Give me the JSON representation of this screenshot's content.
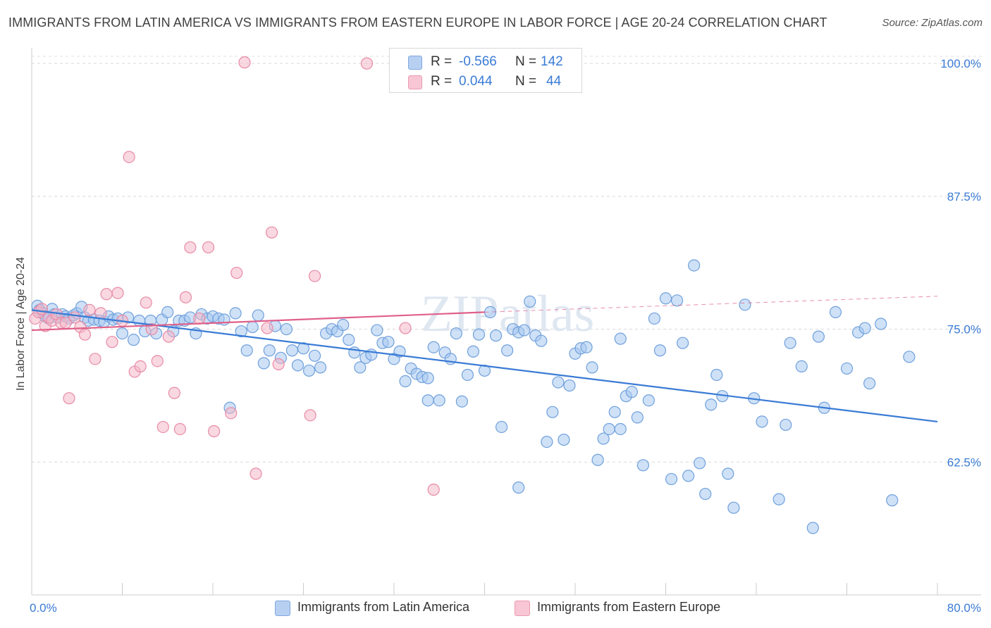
{
  "title": "IMMIGRANTS FROM LATIN AMERICA VS IMMIGRANTS FROM EASTERN EUROPE IN LABOR FORCE | AGE 20-24 CORRELATION CHART",
  "source": "Source: ZipAtlas.com",
  "watermark": "ZIPatlas",
  "legend_top": {
    "rows": [
      {
        "r_label": "R =",
        "r_value": "-0.566",
        "n_label": "N =",
        "n_value": "142"
      },
      {
        "r_label": "R =",
        "r_value": "0.044",
        "n_label": "N =",
        "n_value": "44"
      }
    ]
  },
  "chart_data": {
    "type": "scatter",
    "title": "IMMIGRANTS FROM LATIN AMERICA VS IMMIGRANTS FROM EASTERN EUROPE IN LABOR FORCE | AGE 20-24 CORRELATION CHART",
    "xlabel": "",
    "ylabel": "In Labor Force | Age 20-24",
    "xlim": [
      0,
      80
    ],
    "ylim": [
      50,
      101.2
    ],
    "x_tick_labels": [
      "0.0%",
      "80.0%"
    ],
    "y_ticks": [
      62.5,
      75.0,
      87.5,
      100.0
    ],
    "y_tick_labels": [
      "62.5%",
      "75.0%",
      "87.5%",
      "100.0%"
    ],
    "grid": "horizontal-dashed",
    "legend_position": "bottom",
    "series": [
      {
        "name": "Immigrants from Latin America",
        "color": "#a8c8f0",
        "edge_color": "#6fa0dc",
        "line_color": "#3a7bd5",
        "trend": {
          "x": [
            0,
            80
          ],
          "y": [
            76.8,
            66.3
          ]
        },
        "points": [
          [
            0.5,
            77.2
          ],
          [
            0.7,
            76.8
          ],
          [
            1.0,
            76.5
          ],
          [
            1.2,
            76.2
          ],
          [
            1.5,
            76.0
          ],
          [
            1.8,
            76.9
          ],
          [
            2.0,
            76.4
          ],
          [
            2.3,
            76.1
          ],
          [
            2.7,
            76.4
          ],
          [
            3.0,
            76.2
          ],
          [
            3.3,
            76.0
          ],
          [
            3.7,
            76.3
          ],
          [
            4.0,
            76.5
          ],
          [
            4.4,
            77.1
          ],
          [
            4.7,
            76.1
          ],
          [
            5.0,
            75.8
          ],
          [
            5.5,
            75.9
          ],
          [
            6.0,
            75.8
          ],
          [
            6.4,
            75.7
          ],
          [
            6.8,
            76.2
          ],
          [
            7.2,
            75.9
          ],
          [
            7.6,
            76.0
          ],
          [
            8.0,
            74.6
          ],
          [
            8.5,
            76.1
          ],
          [
            9.0,
            74.0
          ],
          [
            9.5,
            75.8
          ],
          [
            10.0,
            74.8
          ],
          [
            10.5,
            75.8
          ],
          [
            11.0,
            74.6
          ],
          [
            11.5,
            75.9
          ],
          [
            12.0,
            76.6
          ],
          [
            12.5,
            74.8
          ],
          [
            13.0,
            75.8
          ],
          [
            13.5,
            75.8
          ],
          [
            14.0,
            76.1
          ],
          [
            14.5,
            74.6
          ],
          [
            15.0,
            76.4
          ],
          [
            15.5,
            76.0
          ],
          [
            16.0,
            76.2
          ],
          [
            16.5,
            76.0
          ],
          [
            17.0,
            75.9
          ],
          [
            17.5,
            67.6
          ],
          [
            18.0,
            76.5
          ],
          [
            18.5,
            74.8
          ],
          [
            19.0,
            73.0
          ],
          [
            19.5,
            75.2
          ],
          [
            20.0,
            76.3
          ],
          [
            20.5,
            71.8
          ],
          [
            21.0,
            73.0
          ],
          [
            21.5,
            75.3
          ],
          [
            22.0,
            72.3
          ],
          [
            22.5,
            75.0
          ],
          [
            23.0,
            73.0
          ],
          [
            23.5,
            71.6
          ],
          [
            24.0,
            73.2
          ],
          [
            24.5,
            71.1
          ],
          [
            25.0,
            72.5
          ],
          [
            25.5,
            71.4
          ],
          [
            26.0,
            74.6
          ],
          [
            26.5,
            75.0
          ],
          [
            27.0,
            74.8
          ],
          [
            27.5,
            75.4
          ],
          [
            28.0,
            74.0
          ],
          [
            28.5,
            72.8
          ],
          [
            29.0,
            71.4
          ],
          [
            29.5,
            72.3
          ],
          [
            30.0,
            72.6
          ],
          [
            30.5,
            74.9
          ],
          [
            31.0,
            73.7
          ],
          [
            31.5,
            73.8
          ],
          [
            32.0,
            72.2
          ],
          [
            32.5,
            72.9
          ],
          [
            33.0,
            70.1
          ],
          [
            33.5,
            71.3
          ],
          [
            34.0,
            70.8
          ],
          [
            34.5,
            70.5
          ],
          [
            35.0,
            70.4
          ],
          [
            35.5,
            73.3
          ],
          [
            36.0,
            68.3
          ],
          [
            36.5,
            72.8
          ],
          [
            37.0,
            72.2
          ],
          [
            37.5,
            74.6
          ],
          [
            38.0,
            68.2
          ],
          [
            38.5,
            70.7
          ],
          [
            39.0,
            72.9
          ],
          [
            39.5,
            74.5
          ],
          [
            40.0,
            71.1
          ],
          [
            40.5,
            76.6
          ],
          [
            41.0,
            74.4
          ],
          [
            41.5,
            65.8
          ],
          [
            42.0,
            73.0
          ],
          [
            42.5,
            75.0
          ],
          [
            43.0,
            74.7
          ],
          [
            43.5,
            74.9
          ],
          [
            44.0,
            77.6
          ],
          [
            44.5,
            74.4
          ],
          [
            45.0,
            73.9
          ],
          [
            45.5,
            64.4
          ],
          [
            46.0,
            67.2
          ],
          [
            46.5,
            70.0
          ],
          [
            47.0,
            64.6
          ],
          [
            47.5,
            69.7
          ],
          [
            48.0,
            72.7
          ],
          [
            48.5,
            73.2
          ],
          [
            49.0,
            73.3
          ],
          [
            49.5,
            71.4
          ],
          [
            50.0,
            62.7
          ],
          [
            50.5,
            64.7
          ],
          [
            51.0,
            65.6
          ],
          [
            51.5,
            67.2
          ],
          [
            52.0,
            74.1
          ],
          [
            52.5,
            68.7
          ],
          [
            53.0,
            69.1
          ],
          [
            53.5,
            66.7
          ],
          [
            54.0,
            62.2
          ],
          [
            54.5,
            68.3
          ],
          [
            55.0,
            76.0
          ],
          [
            55.5,
            73.0
          ],
          [
            56.0,
            77.9
          ],
          [
            56.5,
            60.9
          ],
          [
            57.0,
            77.7
          ],
          [
            57.5,
            73.7
          ],
          [
            58.0,
            61.2
          ],
          [
            58.5,
            81.0
          ],
          [
            59.0,
            62.4
          ],
          [
            59.5,
            59.5
          ],
          [
            60.0,
            67.9
          ],
          [
            60.5,
            70.7
          ],
          [
            61.0,
            68.7
          ],
          [
            61.5,
            61.4
          ],
          [
            62.0,
            58.2
          ],
          [
            63.0,
            77.3
          ],
          [
            63.8,
            68.5
          ],
          [
            64.5,
            66.3
          ],
          [
            66.0,
            59.0
          ],
          [
            66.6,
            66.0
          ],
          [
            67.0,
            73.7
          ],
          [
            68.0,
            71.5
          ],
          [
            69.0,
            56.3
          ],
          [
            69.5,
            74.3
          ],
          [
            70.0,
            67.6
          ],
          [
            71.0,
            76.6
          ],
          [
            72.0,
            71.3
          ],
          [
            73.0,
            74.7
          ],
          [
            73.6,
            75.1
          ],
          [
            74.0,
            69.9
          ],
          [
            75.0,
            75.5
          ],
          [
            76.0,
            58.9
          ],
          [
            77.5,
            72.4
          ],
          [
            52.0,
            65.6
          ],
          [
            43.0,
            60.1
          ],
          [
            35.0,
            68.3
          ]
        ]
      },
      {
        "name": "Immigrants from Eastern Europe",
        "color": "#f4b8c8",
        "edge_color": "#e88aa6",
        "line_color": "#e0608a",
        "trend": {
          "x": [
            0,
            40
          ],
          "y": [
            74.9,
            76.6
          ]
        },
        "trend_ext": {
          "x": [
            40,
            80
          ],
          "y": [
            76.6,
            78.1
          ]
        },
        "points": [
          [
            0.3,
            76.0
          ],
          [
            0.6,
            76.6
          ],
          [
            0.9,
            76.9
          ],
          [
            1.2,
            75.3
          ],
          [
            1.5,
            76.1
          ],
          [
            1.8,
            75.8
          ],
          [
            2.2,
            76.4
          ],
          [
            2.6,
            75.6
          ],
          [
            3.0,
            75.6
          ],
          [
            3.3,
            68.5
          ],
          [
            3.8,
            76.1
          ],
          [
            4.3,
            75.2
          ],
          [
            4.7,
            74.5
          ],
          [
            5.1,
            76.8
          ],
          [
            5.6,
            72.2
          ],
          [
            6.1,
            76.5
          ],
          [
            6.6,
            78.3
          ],
          [
            7.1,
            73.8
          ],
          [
            7.6,
            78.4
          ],
          [
            8.0,
            75.8
          ],
          [
            8.6,
            91.2
          ],
          [
            9.1,
            71.0
          ],
          [
            9.6,
            71.5
          ],
          [
            10.1,
            77.5
          ],
          [
            10.6,
            75.0
          ],
          [
            11.1,
            72.0
          ],
          [
            11.6,
            65.8
          ],
          [
            12.1,
            74.3
          ],
          [
            12.6,
            69.0
          ],
          [
            13.1,
            65.6
          ],
          [
            13.6,
            78.0
          ],
          [
            14.0,
            82.7
          ],
          [
            14.8,
            76.0
          ],
          [
            15.6,
            82.7
          ],
          [
            16.1,
            65.4
          ],
          [
            18.1,
            80.3
          ],
          [
            18.8,
            100.1
          ],
          [
            19.8,
            61.4
          ],
          [
            20.8,
            75.1
          ],
          [
            21.2,
            84.1
          ],
          [
            21.8,
            71.7
          ],
          [
            24.6,
            66.9
          ],
          [
            25.0,
            80.0
          ],
          [
            35.5,
            59.9
          ],
          [
            33.0,
            75.1
          ],
          [
            29.6,
            100.0
          ],
          [
            17.6,
            67.1
          ]
        ]
      }
    ]
  }
}
